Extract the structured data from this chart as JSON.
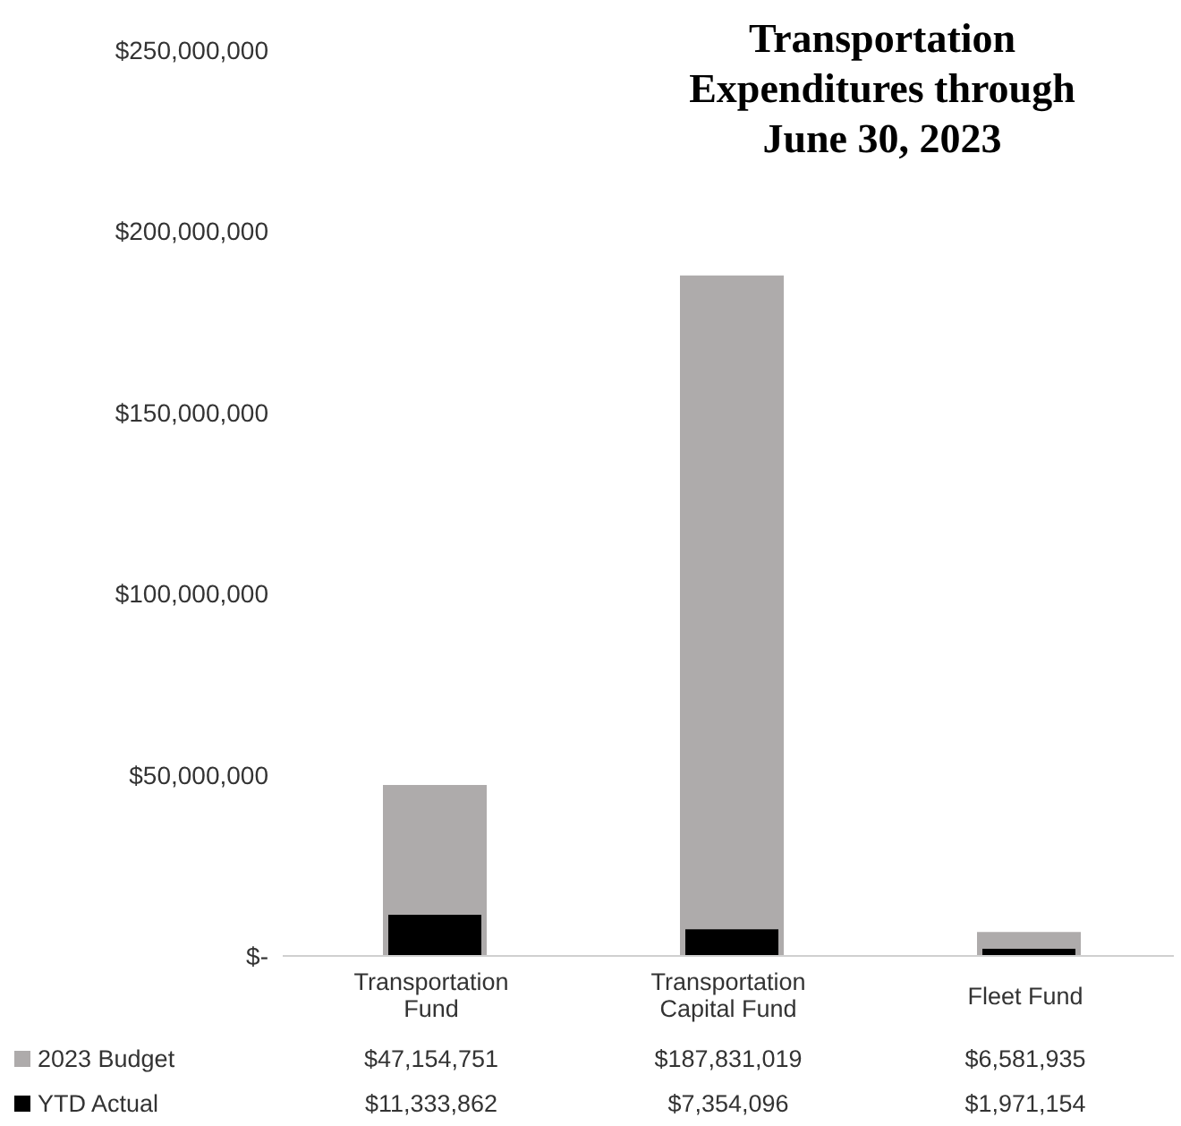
{
  "chart_data": {
    "type": "bar",
    "title": "Transportation Expenditures through June 30, 2023",
    "categories": [
      "Transportation Fund",
      "Transportation Capital Fund",
      "Fleet Fund"
    ],
    "series": [
      {
        "name": "2023 Budget",
        "color": "#aeabab",
        "values": [
          47154751,
          187831019,
          6581935
        ],
        "value_labels": [
          "$47,154,751",
          "$187,831,019",
          "$6,581,935"
        ]
      },
      {
        "name": "YTD Actual",
        "color": "#000000",
        "values": [
          11333862,
          7354096,
          1971154
        ],
        "value_labels": [
          "$11,333,862",
          "$7,354,096",
          "$1,971,154"
        ]
      }
    ],
    "ylim": [
      0,
      250000000
    ],
    "yticks": [
      {
        "value": 0,
        "label": "$-"
      },
      {
        "value": 50000000,
        "label": "$50,000,000"
      },
      {
        "value": 100000000,
        "label": "$100,000,000"
      },
      {
        "value": 150000000,
        "label": "$150,000,000"
      },
      {
        "value": 200000000,
        "label": "$200,000,000"
      },
      {
        "value": 250000000,
        "label": "$250,000,000"
      }
    ],
    "grid": false,
    "legend": "bottom"
  }
}
